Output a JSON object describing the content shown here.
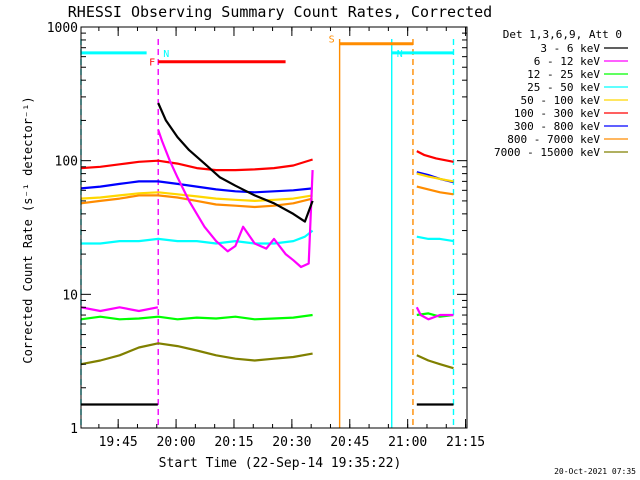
{
  "chart_data": {
    "type": "line",
    "title": "RHESSI Observing Summary Count Rates, Corrected",
    "ylabel": "Corrected Count Rate (s⁻¹ detector⁻¹)",
    "xlabel": "Start Time (22-Sep-14 19:35:22)",
    "x_unit": "minutes after 19:35:22",
    "xlim": [
      0,
      100
    ],
    "ylim": [
      1,
      1000
    ],
    "yscale": "log",
    "yticks": [
      {
        "value": 1,
        "label": "1"
      },
      {
        "value": 10,
        "label": "10"
      },
      {
        "value": 100,
        "label": "100"
      },
      {
        "value": 1000,
        "label": "1000"
      }
    ],
    "xticks": [
      {
        "value": 9.63,
        "label": "19:45"
      },
      {
        "value": 24.63,
        "label": "20:00"
      },
      {
        "value": 39.63,
        "label": "20:15"
      },
      {
        "value": 54.63,
        "label": "20:30"
      },
      {
        "value": 69.63,
        "label": "20:45"
      },
      {
        "value": 84.63,
        "label": "21:00"
      },
      {
        "value": 99.63,
        "label": "21:15"
      }
    ],
    "legend_title": "Det 1,3,6,9, Att 0",
    "legend_position": "right",
    "series": [
      {
        "name": "3 - 6 keV",
        "color": "#000000",
        "segments": [
          {
            "x": [
              0,
              5,
              10,
              15,
              19.9
            ],
            "y": [
              1.5,
              1.5,
              1.5,
              1.5,
              1.5
            ]
          },
          {
            "x": [
              20,
              22,
              25,
              28,
              32,
              36,
              40,
              45,
              50,
              55,
              58,
              60
            ],
            "y": [
              270,
              200,
              150,
              120,
              95,
              75,
              65,
              55,
              48,
              40,
              35,
              50
            ]
          },
          {
            "x": [
              87,
              89,
              92,
              95,
              96.5
            ],
            "y": [
              1.5,
              1.5,
              1.5,
              1.5,
              1.5
            ]
          }
        ]
      },
      {
        "name": "6 - 12 keV",
        "color": "#ff00ff",
        "segments": [
          {
            "x": [
              0,
              5,
              10,
              15,
              19.9
            ],
            "y": [
              8,
              7.5,
              8,
              7.5,
              8
            ]
          },
          {
            "x": [
              20,
              21,
              23,
              25,
              28,
              32,
              35,
              38,
              40,
              42,
              45,
              48,
              50,
              53,
              55,
              57,
              59,
              60
            ],
            "y": [
              170,
              140,
              100,
              75,
              50,
              32,
              25,
              21,
              23,
              32,
              24,
              22,
              26,
              20,
              18,
              16,
              17,
              85
            ]
          },
          {
            "x": [
              87,
              88,
              90,
              93,
              96.5
            ],
            "y": [
              8,
              7,
              6.5,
              7,
              7
            ]
          }
        ]
      },
      {
        "name": "12 - 25 keV",
        "color": "#00ff00",
        "segments": [
          {
            "x": [
              0,
              5,
              10,
              15,
              20,
              25,
              30,
              35,
              40,
              45,
              50,
              55,
              60
            ],
            "y": [
              6.5,
              6.8,
              6.5,
              6.6,
              6.8,
              6.5,
              6.7,
              6.6,
              6.8,
              6.5,
              6.6,
              6.7,
              7
            ]
          },
          {
            "x": [
              87,
              90,
              93,
              96.5
            ],
            "y": [
              7,
              7.2,
              6.8,
              7
            ]
          }
        ]
      },
      {
        "name": "25 - 50 keV",
        "color": "#00ffff",
        "segments": [
          {
            "x": [
              0,
              5,
              10,
              15,
              20,
              25,
              30,
              35,
              40,
              45,
              50,
              55,
              58,
              60
            ],
            "y": [
              24,
              24,
              25,
              25,
              26,
              25,
              25,
              24,
              25,
              24,
              24,
              25,
              27,
              30
            ]
          },
          {
            "x": [
              87,
              90,
              93,
              96.5
            ],
            "y": [
              27,
              26,
              26,
              25
            ]
          }
        ]
      },
      {
        "name": "50 - 100 keV",
        "color": "#ffd700",
        "segments": [
          {
            "x": [
              0,
              5,
              10,
              15,
              20,
              25,
              30,
              35,
              40,
              45,
              50,
              55,
              60
            ],
            "y": [
              52,
              53,
              55,
              57,
              58,
              56,
              54,
              52,
              51,
              50,
              51,
              52,
              55
            ]
          },
          {
            "x": [
              87,
              90,
              93,
              96.5
            ],
            "y": [
              80,
              76,
              73,
              70
            ]
          }
        ]
      },
      {
        "name": "100 - 300 keV",
        "color": "#ff0000",
        "segments": [
          {
            "x": [
              0,
              5,
              10,
              15,
              20,
              25,
              30,
              35,
              40,
              45,
              50,
              55,
              60
            ],
            "y": [
              88,
              90,
              94,
              98,
              100,
              95,
              88,
              85,
              85,
              86,
              88,
              92,
              102
            ]
          },
          {
            "x": [
              87,
              89,
              92,
              96.5
            ],
            "y": [
              118,
              110,
              104,
              98
            ]
          }
        ]
      },
      {
        "name": "300 - 800 keV",
        "color": "#0000ff",
        "segments": [
          {
            "x": [
              0,
              5,
              10,
              15,
              20,
              25,
              30,
              35,
              40,
              45,
              50,
              55,
              60
            ],
            "y": [
              62,
              64,
              67,
              70,
              70,
              67,
              64,
              61,
              59,
              58,
              59,
              60,
              62
            ]
          },
          {
            "x": [
              87,
              90,
              93,
              96.5
            ],
            "y": [
              82,
              78,
              73,
              69
            ]
          }
        ]
      },
      {
        "name": "800 - 7000 keV",
        "color": "#ff8c00",
        "segments": [
          {
            "x": [
              0,
              5,
              10,
              15,
              20,
              25,
              30,
              35,
              40,
              45,
              50,
              55,
              60
            ],
            "y": [
              48,
              50,
              52,
              55,
              55,
              53,
              50,
              47,
              46,
              45,
              46,
              48,
              52
            ]
          },
          {
            "x": [
              87,
              90,
              93,
              96.5
            ],
            "y": [
              64,
              61,
              58,
              56
            ]
          }
        ]
      },
      {
        "name": "7000 - 15000 keV",
        "color": "#808000",
        "segments": [
          {
            "x": [
              0,
              5,
              10,
              15,
              20,
              25,
              30,
              35,
              40,
              45,
              50,
              55,
              60
            ],
            "y": [
              3,
              3.2,
              3.5,
              4,
              4.3,
              4.1,
              3.8,
              3.5,
              3.3,
              3.2,
              3.3,
              3.4,
              3.6
            ]
          },
          {
            "x": [
              87,
              90,
              93,
              96.5
            ],
            "y": [
              3.5,
              3.2,
              3.0,
              2.8
            ]
          }
        ]
      }
    ],
    "annotations": [
      {
        "label": "N",
        "color": "#00ffff",
        "x_start": 0,
        "x_end": 20,
        "y": 640,
        "bar_x": [
          0,
          17
        ]
      },
      {
        "label": "N",
        "color": "#00ffff",
        "x_start": 80.5,
        "x_end": 96.5,
        "y": 640,
        "bar_x": [
          80.5,
          96.5
        ]
      },
      {
        "label": "F",
        "color": "#ff0000",
        "x_start": 20,
        "x_end": 53,
        "y": 550,
        "bar_x": [
          20,
          53
        ]
      },
      {
        "label": "S",
        "color": "#ff8c00",
        "x_start": 67,
        "x_end": 86,
        "y": 750,
        "bar_x": [
          67,
          86
        ]
      }
    ],
    "vertical_markers": [
      {
        "x": 0,
        "color": "#00ffff",
        "dash": true
      },
      {
        "x": 20,
        "color": "#00ffff",
        "dash": true
      },
      {
        "x": 20,
        "color": "#ff00ff",
        "dash": true
      },
      {
        "x": 67,
        "color": "#ff8c00",
        "dash": false
      },
      {
        "x": 80.5,
        "color": "#00ffff",
        "dash": false
      },
      {
        "x": 86,
        "color": "#ff8c00",
        "dash": true
      },
      {
        "x": 96.5,
        "color": "#00ffff",
        "dash": true
      }
    ]
  },
  "footer": {
    "date": "20-Oct-2021 07:35"
  }
}
